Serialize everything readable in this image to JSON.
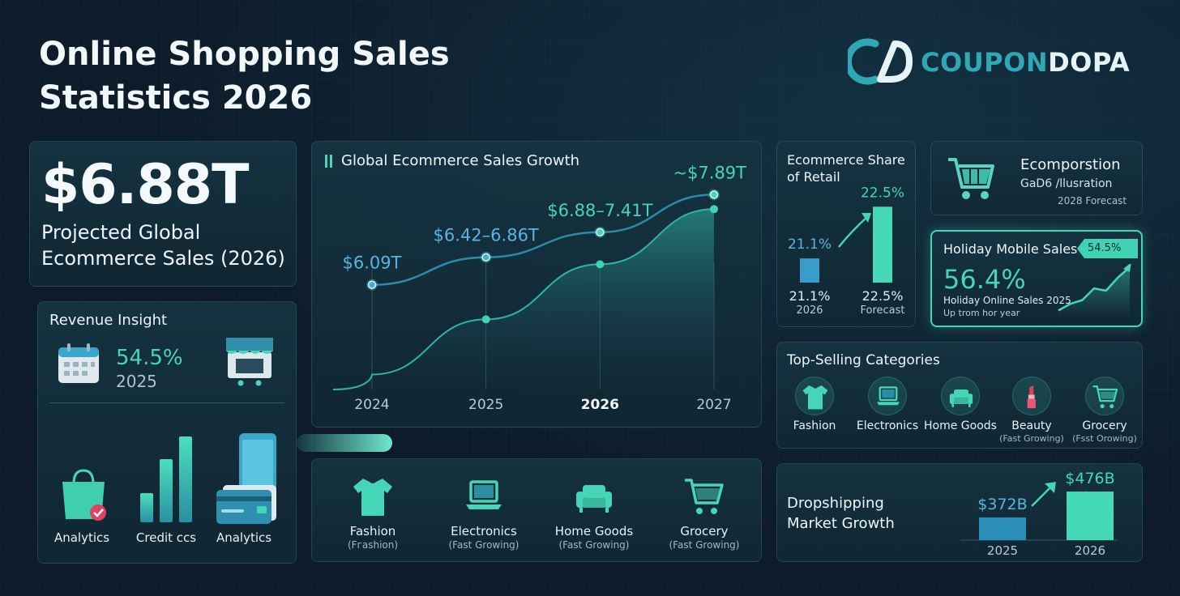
{
  "page": {
    "title_line1": "Online Shopping Sales",
    "title_line2": "Statistics 2026"
  },
  "logo": {
    "brand_a": "COUPON",
    "brand_b": "DOPA",
    "icon": "coupondopa-logo-icon"
  },
  "hero": {
    "value": "$6.88T",
    "label_line1": "Projected Global",
    "label_line2": "Ecommerce Sales (2026)"
  },
  "revenue": {
    "title": "Revenue Insight",
    "percent": "54.5%",
    "year": "2025",
    "icons": [
      "calendar-icon",
      "storefront-icon"
    ],
    "tiles": [
      {
        "label": "Analytics",
        "icon": "shopping-bag-icon"
      },
      {
        "label": "Credit ccs",
        "icon": "bar-chart-icon"
      },
      {
        "label": "Analytics",
        "icon": "credit-card-phone-icon"
      }
    ]
  },
  "chart_data": [
    {
      "type": "line",
      "title": "Global Ecommerce Sales Growth",
      "x": [
        "2024",
        "2025",
        "2026",
        "2027"
      ],
      "series": [
        {
          "values": [
            6.09,
            6.64,
            7.14,
            7.89
          ],
          "labels": [
            "$6.09T",
            "$6.42–6.86T",
            "$6.88–7.41T",
            "~$7.89T"
          ],
          "color": "#45d6b8"
        },
        {
          "values": [
            4.3,
            5.4,
            6.5,
            7.6
          ],
          "color": "#2fb4a8"
        }
      ],
      "ylim": [
        4.0,
        8.3
      ],
      "grid": "vertical"
    },
    {
      "type": "bar",
      "title": "Ecommerce Share of Retail",
      "categories": [
        "2026",
        "Forecast"
      ],
      "values": [
        21.1,
        22.5
      ],
      "value_labels": [
        "21.1%",
        "22.5%"
      ],
      "ylim": [
        0,
        24
      ]
    },
    {
      "type": "bar",
      "title": "Dropshipping Market Growth",
      "categories": [
        "2025",
        "2026"
      ],
      "values": [
        372,
        476
      ],
      "value_labels": [
        "$372B",
        "$476B"
      ],
      "ylim": [
        0,
        520
      ]
    }
  ],
  "ecomposition": {
    "title": "Ecomporstion",
    "subtitle": "GaD6 /llusration",
    "note": "2028 Forecast",
    "icon": "shopping-cart-icon"
  },
  "holiday": {
    "title": "Holiday Mobile Sales",
    "badge": "54.5%",
    "value": "56.4%",
    "line1": "Holiday Online Sales 2025",
    "line2": "Up trom hor year",
    "trend": [
      0.08,
      0.22,
      0.3,
      0.55,
      0.5,
      0.78,
      1.0
    ]
  },
  "top_selling": {
    "title": "Top-Selling Categories",
    "items": [
      {
        "label": "Fashion",
        "sub": "",
        "icon": "tshirt-icon"
      },
      {
        "label": "Electronics",
        "sub": "",
        "icon": "laptop-icon"
      },
      {
        "label": "Home Goods",
        "sub": "",
        "icon": "sofa-icon"
      },
      {
        "label": "Beauty",
        "sub": "(Fast Growing)",
        "icon": "lipstick-icon"
      },
      {
        "label": "Grocery",
        "sub": "(Fsst Orowing)",
        "icon": "shopping-cart-icon"
      }
    ]
  },
  "bottom_categories": [
    {
      "label": "Fashion",
      "sub": "(Fгashion)",
      "icon": "tshirt-icon"
    },
    {
      "label": "Electronics",
      "sub": "(Fast Growing)",
      "icon": "laptop-icon"
    },
    {
      "label": "Home Goods",
      "sub": "(Fast Growing)",
      "icon": "sofa-icon"
    },
    {
      "label": "Grocery",
      "sub": "(Fast Growing)",
      "icon": "shopping-cart-icon"
    }
  ],
  "colors": {
    "accent": "#45d6b8",
    "accent_blue": "#58b4e0",
    "background": "#0d1b2a"
  }
}
